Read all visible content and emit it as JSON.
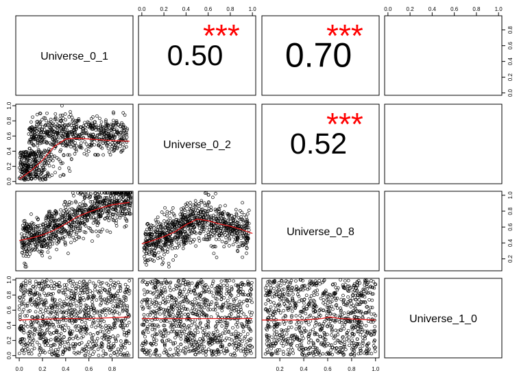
{
  "chart_data": {
    "type": "scatter-matrix",
    "variables": [
      "Universe_0_1",
      "Universe_0_2",
      "Universe_0_8",
      "Universe_1_0"
    ],
    "correlations": [
      {
        "row": 0,
        "col": 1,
        "value": "0.50",
        "stars": "***"
      },
      {
        "row": 0,
        "col": 2,
        "value": "0.70",
        "stars": "***"
      },
      {
        "row": 1,
        "col": 2,
        "value": "0.52",
        "stars": "***"
      }
    ],
    "panels": [
      {
        "row": 1,
        "col": 0,
        "x": "Universe_0_1",
        "y": "Universe_0_2",
        "xlim": [
          -0.03,
          0.98
        ],
        "ylim": [
          -0.03,
          1.02
        ],
        "smooth": [
          [
            0.0,
            0.03
          ],
          [
            0.1,
            0.14
          ],
          [
            0.2,
            0.28
          ],
          [
            0.3,
            0.46
          ],
          [
            0.4,
            0.56
          ],
          [
            0.5,
            0.57
          ],
          [
            0.6,
            0.56
          ],
          [
            0.7,
            0.55
          ],
          [
            0.8,
            0.54
          ],
          [
            0.95,
            0.53
          ]
        ]
      },
      {
        "row": 2,
        "col": 0,
        "x": "Universe_0_1",
        "y": "Universe_0_8",
        "xlim": [
          -0.03,
          0.98
        ],
        "ylim": [
          0.05,
          1.05
        ],
        "smooth": [
          [
            0.0,
            0.43
          ],
          [
            0.1,
            0.46
          ],
          [
            0.2,
            0.5
          ],
          [
            0.3,
            0.56
          ],
          [
            0.4,
            0.64
          ],
          [
            0.5,
            0.73
          ],
          [
            0.6,
            0.79
          ],
          [
            0.7,
            0.84
          ],
          [
            0.8,
            0.88
          ],
          [
            0.95,
            0.91
          ]
        ]
      },
      {
        "row": 2,
        "col": 1,
        "x": "Universe_0_2",
        "y": "Universe_0_8",
        "xlim": [
          -0.03,
          1.03
        ],
        "ylim": [
          0.05,
          1.05
        ],
        "smooth": [
          [
            0.0,
            0.39
          ],
          [
            0.1,
            0.43
          ],
          [
            0.2,
            0.48
          ],
          [
            0.3,
            0.54
          ],
          [
            0.4,
            0.63
          ],
          [
            0.5,
            0.7
          ],
          [
            0.6,
            0.68
          ],
          [
            0.7,
            0.64
          ],
          [
            0.8,
            0.61
          ],
          [
            0.9,
            0.57
          ],
          [
            1.0,
            0.52
          ]
        ]
      },
      {
        "row": 3,
        "col": 0,
        "x": "Universe_0_1",
        "y": "Universe_1_0",
        "xlim": [
          -0.03,
          0.98
        ],
        "ylim": [
          -0.03,
          1.02
        ],
        "smooth": [
          [
            0.0,
            0.47
          ],
          [
            0.2,
            0.48
          ],
          [
            0.4,
            0.49
          ],
          [
            0.6,
            0.49
          ],
          [
            0.8,
            0.5
          ],
          [
            0.95,
            0.51
          ]
        ]
      },
      {
        "row": 3,
        "col": 1,
        "x": "Universe_0_2",
        "y": "Universe_1_0",
        "xlim": [
          -0.03,
          1.03
        ],
        "ylim": [
          -0.03,
          1.02
        ],
        "smooth": [
          [
            0.0,
            0.49
          ],
          [
            0.25,
            0.49
          ],
          [
            0.5,
            0.49
          ],
          [
            0.75,
            0.49
          ],
          [
            1.0,
            0.49
          ]
        ]
      },
      {
        "row": 3,
        "col": 2,
        "x": "Universe_0_8",
        "y": "Universe_1_0",
        "xlim": [
          0.05,
          1.03
        ],
        "ylim": [
          -0.03,
          1.02
        ],
        "smooth": [
          [
            0.05,
            0.47
          ],
          [
            0.2,
            0.47
          ],
          [
            0.4,
            0.47
          ],
          [
            0.55,
            0.49
          ],
          [
            0.62,
            0.51
          ],
          [
            0.7,
            0.49
          ],
          [
            0.85,
            0.48
          ],
          [
            1.0,
            0.47
          ]
        ]
      }
    ],
    "axes": {
      "top": {
        "col": 1,
        "ticks": [
          "0.0",
          "0.2",
          "0.4",
          "0.6",
          "0.8",
          "1.0"
        ],
        "values": [
          0,
          0.2,
          0.4,
          0.6,
          0.8,
          1.0
        ],
        "lim": [
          -0.03,
          1.03
        ]
      },
      "top_2": {
        "col": 3,
        "ticks": [
          "0.0",
          "0.2",
          "0.4",
          "0.6",
          "0.8",
          "1.0"
        ],
        "values": [
          0,
          0.2,
          0.4,
          0.6,
          0.8,
          1.0
        ],
        "lim": [
          -0.03,
          1.03
        ]
      },
      "bottom": {
        "col": 0,
        "ticks": [
          "0.0",
          "0.2",
          "0.4",
          "0.6",
          "0.8"
        ],
        "values": [
          0,
          0.2,
          0.4,
          0.6,
          0.8
        ],
        "lim": [
          -0.03,
          0.98
        ]
      },
      "bottom_2": {
        "col": 2,
        "ticks": [
          "0.2",
          "0.4",
          "0.6",
          "0.8",
          "1.0"
        ],
        "values": [
          0.2,
          0.4,
          0.6,
          0.8,
          1.0
        ],
        "lim": [
          0.05,
          1.03
        ]
      },
      "left": {
        "row": 1,
        "ticks": [
          "0.0",
          "0.2",
          "0.4",
          "0.6",
          "0.8",
          "1.0"
        ],
        "values": [
          0,
          0.2,
          0.4,
          0.6,
          0.8,
          1.0
        ],
        "lim": [
          -0.03,
          1.02
        ]
      },
      "left_2": {
        "row": 3,
        "ticks": [
          "0.0",
          "0.2",
          "0.4",
          "0.6",
          "0.8",
          "1.0"
        ],
        "values": [
          0,
          0.2,
          0.4,
          0.6,
          0.8,
          1.0
        ],
        "lim": [
          -0.03,
          1.02
        ]
      },
      "right": {
        "row": 0,
        "ticks": [
          "0.0",
          "0.2",
          "0.4",
          "0.6",
          "0.8"
        ],
        "values": [
          0,
          0.2,
          0.4,
          0.6,
          0.8
        ],
        "lim": [
          -0.03,
          0.98
        ]
      },
      "right_2": {
        "row": 2,
        "ticks": [
          "0.2",
          "0.4",
          "0.6",
          "0.8",
          "1.0"
        ],
        "values": [
          0.2,
          0.4,
          0.6,
          0.8,
          1.0
        ],
        "lim": [
          0.05,
          1.05
        ]
      }
    },
    "colors": {
      "points": "#000000",
      "smooth": "#e41a1c",
      "stars": "#ff0000",
      "frame": "#000000"
    },
    "grid": false
  }
}
